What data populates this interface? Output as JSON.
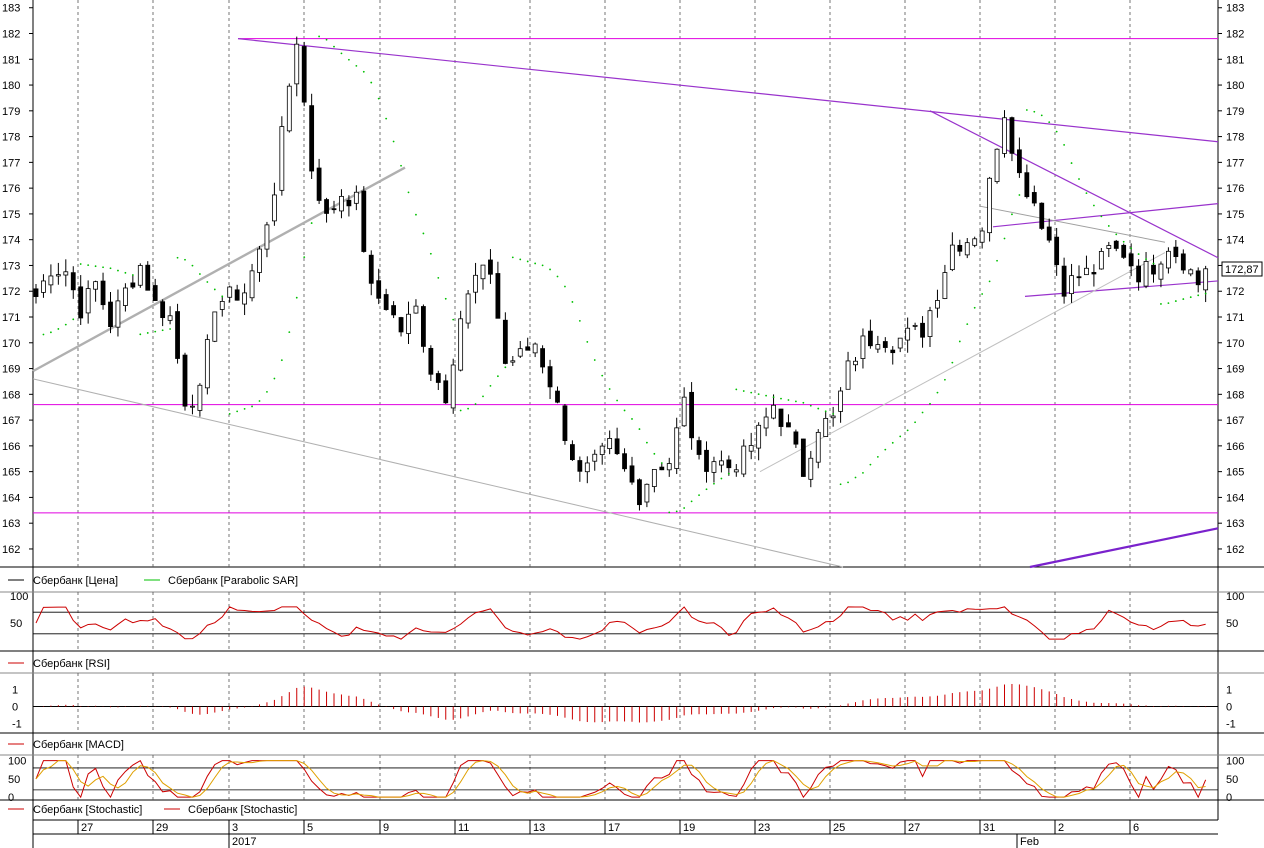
{
  "app": {
    "instrument": "Сбербанк"
  },
  "price_panel": {
    "legend": [
      {
        "label": "Сбербанк [Цена]",
        "color": "#000000"
      },
      {
        "label": "Сбербанк [Parabolic SAR]",
        "color": "#00c000"
      }
    ],
    "last_price": "172,87",
    "y_ticks": [
      "162",
      "163",
      "164",
      "165",
      "166",
      "167",
      "168",
      "169",
      "170",
      "171",
      "172",
      "173",
      "174",
      "175",
      "176",
      "177",
      "178",
      "179",
      "180",
      "181",
      "182",
      "183"
    ]
  },
  "rsi_panel": {
    "legend": [
      {
        "label": "Сбербанк [RSI]",
        "color": "#cc0000"
      }
    ],
    "y_ticks": [
      "100",
      "50"
    ]
  },
  "macd_panel": {
    "legend": [
      {
        "label": "Сбербанк [MACD]",
        "color": "#cc0000"
      }
    ],
    "y_ticks": [
      "1",
      "0",
      "-1"
    ]
  },
  "stoch_panel": {
    "legend": [
      {
        "label": "Сбербанк [Stochastic]",
        "color": "#cc0000"
      },
      {
        "label": "Сбербанк [Stochastic]",
        "color": "#cc0000"
      }
    ],
    "y_ticks": [
      "100",
      "50",
      "0"
    ]
  },
  "time_axis": {
    "day_labels": [
      "27",
      "29",
      "3",
      "5",
      "9",
      "11",
      "13",
      "17",
      "19",
      "23",
      "25",
      "27",
      "31",
      "2",
      "6"
    ],
    "month_labels": [
      "2017",
      "Feb"
    ]
  },
  "chart_data": {
    "type": "candlestick",
    "series": [
      {
        "name": "Сбербанк [Цена]",
        "close_path": [
          [
            0,
            171.8
          ],
          [
            2,
            172.9
          ],
          [
            4,
            172.8
          ],
          [
            6,
            171.3
          ],
          [
            8,
            172.3
          ],
          [
            10,
            170.8
          ],
          [
            12,
            172.0
          ],
          [
            14,
            173.0
          ],
          [
            16,
            171.5
          ],
          [
            18,
            171.0
          ],
          [
            20,
            167.8
          ],
          [
            22,
            168.0
          ],
          [
            24,
            171.5
          ],
          [
            26,
            171.8
          ],
          [
            28,
            172.0
          ],
          [
            30,
            173.5
          ],
          [
            32,
            176.0
          ],
          [
            34,
            180.0
          ],
          [
            35,
            181.8
          ],
          [
            37,
            176.8
          ],
          [
            39,
            174.8
          ],
          [
            41,
            175.8
          ],
          [
            43,
            175.5
          ],
          [
            45,
            172.0
          ],
          [
            47,
            171.5
          ],
          [
            49,
            170.5
          ],
          [
            51,
            171.3
          ],
          [
            53,
            169.0
          ],
          [
            55,
            168.0
          ],
          [
            57,
            171.0
          ],
          [
            59,
            172.5
          ],
          [
            61,
            172.8
          ],
          [
            63,
            169.2
          ],
          [
            65,
            169.5
          ],
          [
            67,
            170.0
          ],
          [
            69,
            168.5
          ],
          [
            71,
            166.5
          ],
          [
            73,
            164.8
          ],
          [
            75,
            165.3
          ],
          [
            77,
            166.0
          ],
          [
            79,
            165.0
          ],
          [
            81,
            164.1
          ],
          [
            83,
            165.2
          ],
          [
            85,
            165.4
          ],
          [
            87,
            167.7
          ],
          [
            89,
            165.3
          ],
          [
            91,
            165.5
          ],
          [
            93,
            165.2
          ],
          [
            95,
            165.6
          ],
          [
            97,
            166.5
          ],
          [
            99,
            167.6
          ],
          [
            101,
            166.5
          ],
          [
            103,
            165.0
          ],
          [
            105,
            166.8
          ],
          [
            107,
            167.0
          ],
          [
            109,
            169.0
          ],
          [
            111,
            170.0
          ],
          [
            113,
            170.3
          ],
          [
            115,
            170.0
          ],
          [
            117,
            170.3
          ],
          [
            119,
            170.5
          ],
          [
            121,
            172.0
          ],
          [
            123,
            173.8
          ],
          [
            125,
            174.0
          ],
          [
            127,
            174.5
          ],
          [
            129,
            177.8
          ],
          [
            130,
            179.0
          ],
          [
            132,
            176.5
          ],
          [
            134,
            175.5
          ],
          [
            136,
            174.0
          ],
          [
            138,
            172.2
          ],
          [
            140,
            172.6
          ],
          [
            142,
            172.8
          ],
          [
            144,
            173.6
          ],
          [
            146,
            173.5
          ],
          [
            148,
            172.7
          ],
          [
            150,
            173.0
          ],
          [
            152,
            173.8
          ],
          [
            154,
            173.2
          ],
          [
            156,
            172.3
          ],
          [
            157,
            172.87
          ]
        ],
        "high": 181.8,
        "low": 163.5
      },
      {
        "name": "Сбербанк [Parabolic SAR]"
      },
      {
        "name": "Сбербанк [RSI]"
      },
      {
        "name": "Сбербанк [MACD]"
      },
      {
        "name": "Сбербанк [Stochastic]"
      }
    ],
    "horizontal_levels": [
      181.8,
      167.6,
      163.4
    ],
    "y_range": [
      161.3,
      183.3
    ],
    "rsi_range": [
      0,
      100
    ],
    "macd_range": [
      -1.5,
      1.8
    ],
    "stoch_range": [
      -5,
      110
    ],
    "grid": true
  }
}
